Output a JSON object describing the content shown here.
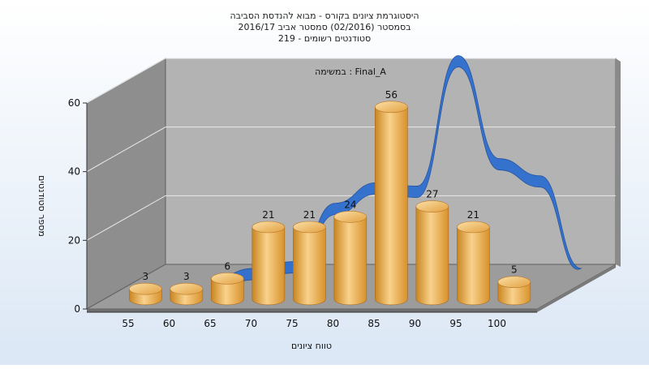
{
  "chart_data": {
    "type": "bar",
    "title_lines": [
      "היסטוגרמת ציונים בקורס - מבוא להנדסת הסביבה",
      "בסמסטר  (02/2016)  סמסטר אביב 2016/17",
      "סטודנטים רשומים - 219"
    ],
    "subtitle": "במשימה : Final_A",
    "xlabel": "טווח ציונים",
    "ylabel": "מספר סטודנטים",
    "categories": [
      "55",
      "60",
      "65",
      "70",
      "75",
      "80",
      "85",
      "90",
      "95",
      "100"
    ],
    "values": [
      3,
      3,
      6,
      21,
      21,
      24,
      56,
      27,
      21,
      5
    ],
    "yticks": [
      0,
      20,
      40,
      60
    ],
    "ylim": [
      0,
      60
    ],
    "grid": true,
    "series": [
      {
        "values": [
          3,
          3,
          6,
          21,
          21,
          24,
          56,
          27,
          21,
          5
        ]
      }
    ],
    "trend_line": {
      "x": [
        60,
        65,
        70,
        75,
        80,
        85,
        90,
        95,
        100,
        105
      ],
      "y": [
        0,
        3,
        5,
        22,
        28,
        27,
        65,
        35,
        30,
        3
      ]
    },
    "colors": {
      "bar": "#e6a33c",
      "bar_light": "#f9d28c",
      "trend": "#2f6fcf",
      "floor": "#9c9c9c",
      "back_wall": "#b3b3b3",
      "side_wall": "#8e8e8e",
      "gridline": "#e8e8e8"
    }
  }
}
